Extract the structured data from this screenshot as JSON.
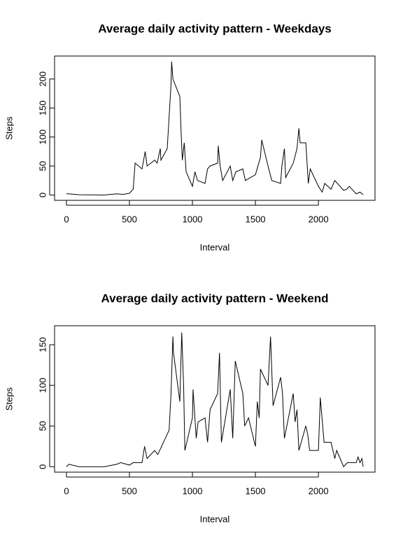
{
  "chart_data": [
    {
      "type": "line",
      "title": "Average daily activity pattern - Weekdays",
      "xlabel": "Interval",
      "ylabel": "Steps",
      "xlim": [
        -94.2,
        2449.2
      ],
      "ylim": [
        -9.2,
        239.6
      ],
      "xticks": [
        0,
        500,
        1000,
        1500,
        2000
      ],
      "yticks": [
        0,
        50,
        100,
        150,
        200
      ],
      "series": [
        {
          "name": "Weekdays",
          "color": "#000000",
          "x": [
            0,
            100,
            200,
            300,
            400,
            450,
            500,
            530,
            545,
            600,
            625,
            640,
            700,
            720,
            745,
            750,
            800,
            830,
            835,
            845,
            900,
            910,
            920,
            935,
            950,
            1000,
            1020,
            1040,
            1100,
            1120,
            1140,
            1200,
            1205,
            1220,
            1240,
            1300,
            1320,
            1345,
            1400,
            1420,
            1500,
            1540,
            1550,
            1600,
            1630,
            1700,
            1710,
            1730,
            1740,
            1800,
            1830,
            1845,
            1855,
            1900,
            1920,
            1935,
            2000,
            2030,
            2050,
            2100,
            2130,
            2200,
            2225,
            2245,
            2300,
            2330,
            2355
          ],
          "values": [
            2.3,
            0.4,
            0.3,
            0,
            2,
            1,
            3,
            10,
            55,
            45,
            75,
            50,
            60,
            55,
            80,
            60,
            80,
            190,
            230,
            200,
            170,
            110,
            60,
            90,
            40,
            15,
            40,
            25,
            20,
            45,
            50,
            55,
            85,
            50,
            25,
            50,
            25,
            40,
            45,
            25,
            35,
            65,
            95,
            50,
            25,
            20,
            50,
            80,
            30,
            55,
            80,
            115,
            90,
            90,
            20,
            45,
            15,
            5,
            20,
            10,
            25,
            8,
            10,
            15,
            2,
            5,
            0.5
          ]
        }
      ]
    },
    {
      "type": "line",
      "title": "Average daily activity pattern - Weekend",
      "xlabel": "Interval",
      "ylabel": "Steps",
      "xlim": [
        -94.2,
        2449.2
      ],
      "ylim": [
        -6.7,
        173.3
      ],
      "xticks": [
        0,
        500,
        1000,
        1500,
        2000
      ],
      "yticks": [
        0,
        50,
        100,
        150
      ],
      "series": [
        {
          "name": "Weekend",
          "color": "#000000",
          "x": [
            0,
            20,
            100,
            200,
            300,
            400,
            430,
            500,
            530,
            600,
            620,
            640,
            700,
            725,
            800,
            815,
            830,
            845,
            850,
            900,
            915,
            930,
            940,
            1000,
            1005,
            1030,
            1045,
            1100,
            1120,
            1140,
            1200,
            1215,
            1230,
            1300,
            1320,
            1340,
            1400,
            1415,
            1445,
            1500,
            1515,
            1530,
            1540,
            1600,
            1620,
            1640,
            1700,
            1715,
            1730,
            1800,
            1815,
            1830,
            1845,
            1900,
            1915,
            1930,
            2000,
            2015,
            2045,
            2100,
            2130,
            2145,
            2200,
            2230,
            2300,
            2315,
            2330,
            2345,
            2355
          ],
          "values": [
            0,
            3,
            0,
            0,
            0,
            3,
            5,
            2,
            5,
            5,
            25,
            10,
            20,
            15,
            40,
            45,
            90,
            160,
            140,
            80,
            165,
            100,
            20,
            60,
            95,
            35,
            55,
            60,
            30,
            70,
            90,
            140,
            30,
            95,
            35,
            130,
            90,
            50,
            60,
            25,
            80,
            60,
            120,
            100,
            160,
            75,
            110,
            90,
            35,
            90,
            55,
            70,
            20,
            50,
            40,
            20,
            20,
            85,
            30,
            30,
            10,
            20,
            0,
            5,
            5,
            12,
            5,
            10,
            0
          ]
        }
      ]
    }
  ]
}
